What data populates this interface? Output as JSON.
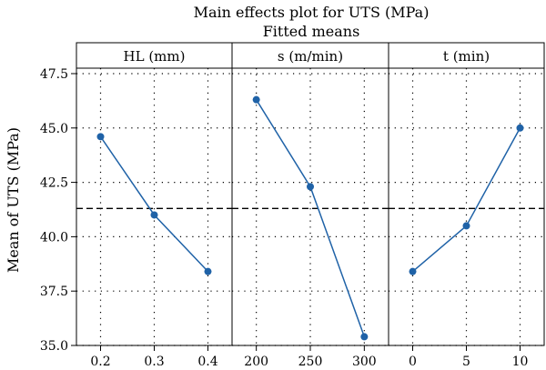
{
  "chart_data": {
    "type": "line",
    "title": "Main effects plot for UTS (MPa)",
    "subtitle": "Fitted means",
    "ylabel": "Mean of UTS (MPa)",
    "ylim": [
      35.0,
      47.75
    ],
    "yticks": [
      "35.0",
      "37.5",
      "40.0",
      "42.5",
      "45.0",
      "47.5"
    ],
    "reference_mean": 41.3,
    "grid": true,
    "colors": {
      "series": "#1f62a7",
      "reference": "#000000"
    },
    "panels": [
      {
        "name": "HL (mm)",
        "categories": [
          "0.2",
          "0.3",
          "0.4"
        ],
        "values": [
          44.6,
          41.0,
          38.4
        ]
      },
      {
        "name": "s (m/min)",
        "categories": [
          "200",
          "250",
          "300"
        ],
        "values": [
          46.3,
          42.3,
          35.4
        ]
      },
      {
        "name": "t (min)",
        "categories": [
          "0",
          "5",
          "10"
        ],
        "values": [
          38.4,
          40.5,
          45.0
        ]
      }
    ]
  }
}
